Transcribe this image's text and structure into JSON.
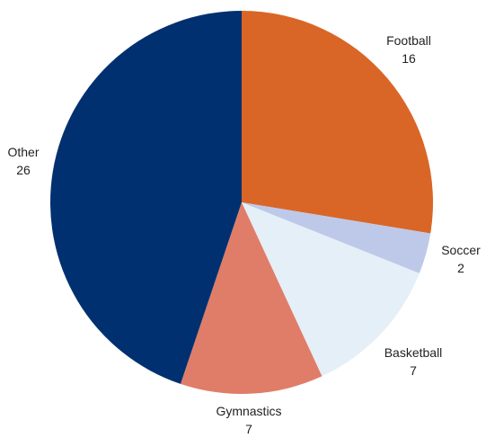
{
  "chart_data": {
    "type": "pie",
    "title": "",
    "slices": [
      {
        "label": "Football",
        "value": 16,
        "color": "#d96627"
      },
      {
        "label": "Soccer",
        "value": 2,
        "color": "#bec9e9"
      },
      {
        "label": "Basketball",
        "value": 7,
        "color": "#e5eff8"
      },
      {
        "label": "Gymnastics",
        "value": 7,
        "color": "#e07d69"
      },
      {
        "label": "Other",
        "value": 26,
        "color": "#003070"
      }
    ]
  }
}
